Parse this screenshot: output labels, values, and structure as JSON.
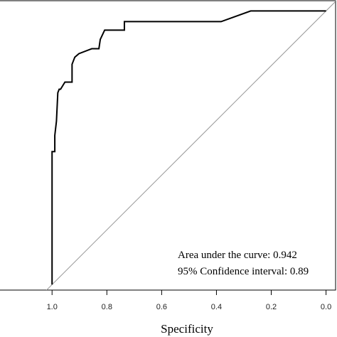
{
  "chart_data": {
    "type": "line",
    "xlabel": "Specificity",
    "annotations": [
      "Area under the curve: 0.942",
      "95% Confidence interval: 0.89"
    ],
    "xlim": [
      1.19,
      -0.04
    ],
    "ylim": [
      -0.02,
      1.04
    ],
    "xticks": [
      {
        "value": 1,
        "label": "1.0"
      },
      0.8,
      0.6,
      0.4,
      0.2,
      {
        "value": 0,
        "label": "0.0"
      }
    ],
    "reference_diagonal": true,
    "x": [
      1.0,
      1.0,
      0.99,
      0.99,
      0.984,
      0.979,
      0.974,
      0.969,
      0.953,
      0.927,
      0.927,
      0.917,
      0.902,
      0.855,
      0.829,
      0.824,
      0.808,
      0.736,
      0.736,
      0.383,
      0.275,
      0.0
    ],
    "series": [
      {
        "color": "#000000",
        "values": [
          0.0,
          0.486,
          0.486,
          0.545,
          0.597,
          0.701,
          0.714,
          0.714,
          0.74,
          0.74,
          0.805,
          0.831,
          0.844,
          0.862,
          0.862,
          0.896,
          0.93,
          0.93,
          0.961,
          0.961,
          1.0,
          1.0
        ]
      }
    ]
  }
}
